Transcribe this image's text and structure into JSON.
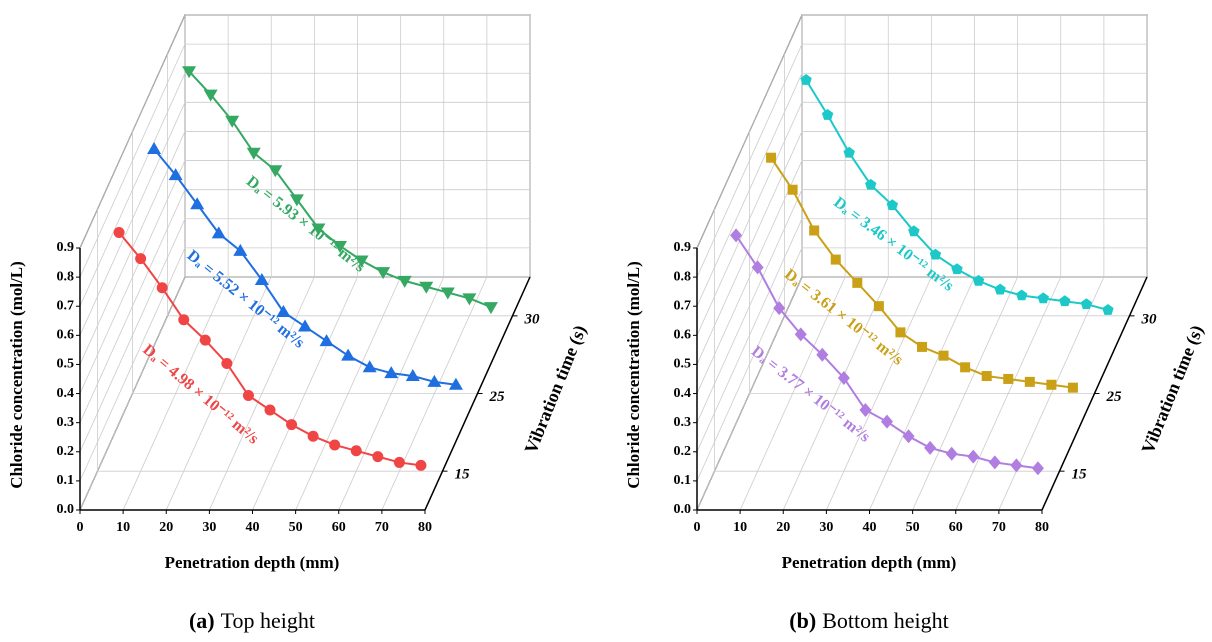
{
  "chart_data": [
    {
      "type": "line3d",
      "caption_label": "(a)",
      "caption": "Top height",
      "zlabel": "Chloride concentration (mol/L)",
      "xlabel": "Penetration depth (mm)",
      "depth_label": "Vibration time (s)",
      "x": [
        5,
        10,
        15,
        20,
        25,
        30,
        35,
        40,
        45,
        50,
        55,
        60,
        65,
        70,
        75
      ],
      "xlim": [
        0,
        80
      ],
      "xticks": [
        0,
        10,
        20,
        30,
        40,
        50,
        60,
        70,
        80
      ],
      "zlim": [
        0,
        0.9
      ],
      "zticks": [
        {
          "value": 0,
          "label": "0.0"
        },
        0.1,
        0.2,
        0.3,
        0.4,
        0.5,
        0.6,
        0.7,
        0.8,
        0.9
      ],
      "depth_categories": [
        "15",
        "25",
        "30"
      ],
      "grid": true,
      "series": [
        {
          "annotation": "Dₐ = 4.98 × 10⁻¹² m²/s",
          "color": "#f04545",
          "marker": "circle",
          "values": [
            0.82,
            0.73,
            0.63,
            0.52,
            0.45,
            0.37,
            0.26,
            0.21,
            0.16,
            0.12,
            0.09,
            0.07,
            0.05,
            0.03,
            0.02
          ]
        },
        {
          "annotation": "Dₐ = 5.52 × 10⁻¹² m²/s",
          "color": "#1f6fe0",
          "marker": "triangle-up",
          "values": [
            0.84,
            0.75,
            0.65,
            0.55,
            0.49,
            0.39,
            0.28,
            0.23,
            0.18,
            0.13,
            0.09,
            0.07,
            0.06,
            0.04,
            0.03
          ]
        },
        {
          "annotation": "Dₐ = 5.93 × 10⁻¹² m²/s",
          "color": "#35a862",
          "marker": "triangle-down",
          "values": [
            0.84,
            0.76,
            0.67,
            0.56,
            0.5,
            0.4,
            0.3,
            0.24,
            0.19,
            0.15,
            0.12,
            0.1,
            0.08,
            0.06,
            0.03
          ]
        }
      ]
    },
    {
      "type": "line3d",
      "caption_label": "(b)",
      "caption": "Bottom height",
      "zlabel": "Chloride concentration (mol/L)",
      "xlabel": "Penetration depth (mm)",
      "depth_label": "Vibration time (s)",
      "x": [
        5,
        10,
        15,
        20,
        25,
        30,
        35,
        40,
        45,
        50,
        55,
        60,
        65,
        70,
        75
      ],
      "xlim": [
        0,
        80
      ],
      "xticks": [
        0,
        10,
        20,
        30,
        40,
        50,
        60,
        70,
        80
      ],
      "zlim": [
        0,
        0.9
      ],
      "zticks": [
        {
          "value": 0,
          "label": "0.0"
        },
        0.1,
        0.2,
        0.3,
        0.4,
        0.5,
        0.6,
        0.7,
        0.8,
        0.9
      ],
      "depth_categories": [
        "15",
        "25",
        "30"
      ],
      "grid": true,
      "series": [
        {
          "annotation": "Dₐ = 3.77 × 10⁻¹² m²/s",
          "color": "#b07ee0",
          "marker": "diamond",
          "values": [
            0.81,
            0.7,
            0.56,
            0.47,
            0.4,
            0.32,
            0.21,
            0.17,
            0.12,
            0.08,
            0.06,
            0.05,
            0.03,
            0.02,
            0.01
          ]
        },
        {
          "annotation": "Dₐ = 3.61 × 10⁻¹² m²/s",
          "color": "#c9a016",
          "marker": "square",
          "values": [
            0.81,
            0.7,
            0.56,
            0.46,
            0.38,
            0.3,
            0.21,
            0.16,
            0.13,
            0.09,
            0.06,
            0.05,
            0.04,
            0.03,
            0.02
          ]
        },
        {
          "annotation": "Dₐ = 3.46 × 10⁻¹² m²/s",
          "color": "#1cc8c8",
          "marker": "pentagon",
          "values": [
            0.81,
            0.69,
            0.56,
            0.45,
            0.38,
            0.29,
            0.21,
            0.16,
            0.12,
            0.09,
            0.07,
            0.06,
            0.05,
            0.04,
            0.02
          ]
        }
      ]
    }
  ]
}
